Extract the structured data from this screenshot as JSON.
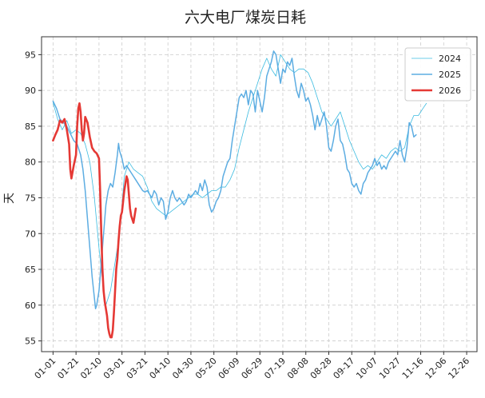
{
  "chart_data": {
    "type": "line",
    "title": "六大电厂煤炭日耗",
    "xlabel": "",
    "ylabel": "天",
    "ylim": [
      53.5,
      97.5
    ],
    "yticks": [
      55,
      60,
      65,
      70,
      75,
      80,
      85,
      90,
      95
    ],
    "grid": true,
    "legend_position": "top-right",
    "x_tick_days": [
      0,
      20,
      40,
      60,
      80,
      100,
      120,
      140,
      160,
      180,
      200,
      220,
      240,
      260,
      280,
      300,
      320,
      340,
      360
    ],
    "x_tick_labels": [
      "01-01",
      "01-21",
      "02-10",
      "03-01",
      "03-21",
      "04-10",
      "04-30",
      "05-20",
      "06-09",
      "06-29",
      "07-19",
      "08-08",
      "08-28",
      "09-17",
      "10-07",
      "10-27",
      "11-16",
      "12-06",
      "12-26"
    ],
    "series": [
      {
        "name": "2024",
        "color": "#3bbbe0",
        "points": [
          [
            0,
            88.3
          ],
          [
            4,
            86.0
          ],
          [
            8,
            84.5
          ],
          [
            12,
            85.8
          ],
          [
            16,
            84.0
          ],
          [
            20,
            84.5
          ],
          [
            24,
            84.0
          ],
          [
            28,
            82.5
          ],
          [
            32,
            80.0
          ],
          [
            36,
            75.0
          ],
          [
            40,
            68.0
          ],
          [
            44,
            62.0
          ],
          [
            46,
            60.0
          ],
          [
            50,
            62.0
          ],
          [
            54,
            66.0
          ],
          [
            58,
            70.0
          ],
          [
            62,
            78.0
          ],
          [
            66,
            80.0
          ],
          [
            70,
            79.0
          ],
          [
            74,
            78.5
          ],
          [
            78,
            78.0
          ],
          [
            82,
            76.5
          ],
          [
            86,
            74.5
          ],
          [
            90,
            73.5
          ],
          [
            94,
            73.0
          ],
          [
            98,
            72.5
          ],
          [
            102,
            73.0
          ],
          [
            106,
            73.5
          ],
          [
            110,
            74.0
          ],
          [
            114,
            74.5
          ],
          [
            118,
            75.0
          ],
          [
            122,
            75.5
          ],
          [
            126,
            75.5
          ],
          [
            130,
            75.0
          ],
          [
            134,
            75.5
          ],
          [
            138,
            76.0
          ],
          [
            142,
            76.0
          ],
          [
            146,
            76.5
          ],
          [
            150,
            76.5
          ],
          [
            154,
            77.5
          ],
          [
            158,
            79.0
          ],
          [
            162,
            82.0
          ],
          [
            166,
            84.5
          ],
          [
            170,
            87.0
          ],
          [
            174,
            89.0
          ],
          [
            178,
            91.0
          ],
          [
            182,
            93.0
          ],
          [
            186,
            94.5
          ],
          [
            190,
            93.0
          ],
          [
            194,
            92.0
          ],
          [
            198,
            95.0
          ],
          [
            202,
            94.0
          ],
          [
            206,
            93.0
          ],
          [
            210,
            92.5
          ],
          [
            214,
            93.0
          ],
          [
            218,
            93.0
          ],
          [
            222,
            92.5
          ],
          [
            226,
            91.0
          ],
          [
            230,
            89.0
          ],
          [
            234,
            87.0
          ],
          [
            238,
            86.0
          ],
          [
            242,
            85.0
          ],
          [
            246,
            86.0
          ],
          [
            250,
            87.0
          ],
          [
            254,
            85.0
          ],
          [
            258,
            83.0
          ],
          [
            262,
            81.5
          ],
          [
            266,
            80.0
          ],
          [
            270,
            79.0
          ],
          [
            274,
            79.5
          ],
          [
            278,
            79.0
          ],
          [
            282,
            80.0
          ],
          [
            286,
            81.0
          ],
          [
            290,
            80.5
          ],
          [
            294,
            81.5
          ],
          [
            298,
            82.0
          ],
          [
            302,
            81.5
          ],
          [
            306,
            82.0
          ],
          [
            310,
            85.0
          ],
          [
            314,
            86.5
          ],
          [
            318,
            86.5
          ],
          [
            322,
            87.5
          ],
          [
            325,
            88.2
          ]
        ]
      },
      {
        "name": "2025",
        "color": "#5dade2",
        "points": [
          [
            0,
            88.5
          ],
          [
            3,
            87.5
          ],
          [
            6,
            86.0
          ],
          [
            9,
            85.5
          ],
          [
            12,
            85.0
          ],
          [
            15,
            84.0
          ],
          [
            18,
            83.0
          ],
          [
            21,
            82.5
          ],
          [
            24,
            81.0
          ],
          [
            26,
            79.0
          ],
          [
            28,
            76.0
          ],
          [
            30,
            72.0
          ],
          [
            32,
            68.0
          ],
          [
            34,
            64.0
          ],
          [
            36,
            61.0
          ],
          [
            37,
            59.5
          ],
          [
            38,
            60.0
          ],
          [
            40,
            62.0
          ],
          [
            42,
            66.0
          ],
          [
            44,
            70.0
          ],
          [
            46,
            74.0
          ],
          [
            48,
            76.0
          ],
          [
            50,
            77.0
          ],
          [
            52,
            76.5
          ],
          [
            54,
            78.5
          ],
          [
            56,
            81.0
          ],
          [
            57,
            82.6
          ],
          [
            58,
            81.5
          ],
          [
            60,
            80.5
          ],
          [
            62,
            79.0
          ],
          [
            64,
            79.5
          ],
          [
            66,
            79.0
          ],
          [
            68,
            78.5
          ],
          [
            70,
            78.0
          ],
          [
            72,
            77.5
          ],
          [
            74,
            77.0
          ],
          [
            76,
            76.5
          ],
          [
            78,
            76.0
          ],
          [
            80,
            75.8
          ],
          [
            82,
            76.0
          ],
          [
            84,
            75.5
          ],
          [
            86,
            75.0
          ],
          [
            88,
            76.0
          ],
          [
            90,
            75.5
          ],
          [
            92,
            74.0
          ],
          [
            94,
            75.0
          ],
          [
            96,
            74.5
          ],
          [
            98,
            72.0
          ],
          [
            100,
            73.0
          ],
          [
            102,
            75.0
          ],
          [
            104,
            76.0
          ],
          [
            106,
            75.0
          ],
          [
            108,
            74.5
          ],
          [
            110,
            75.0
          ],
          [
            112,
            74.5
          ],
          [
            114,
            74.0
          ],
          [
            116,
            74.5
          ],
          [
            118,
            75.5
          ],
          [
            120,
            75.0
          ],
          [
            122,
            75.5
          ],
          [
            124,
            76.0
          ],
          [
            126,
            75.5
          ],
          [
            128,
            77.0
          ],
          [
            130,
            76.0
          ],
          [
            132,
            77.5
          ],
          [
            134,
            76.5
          ],
          [
            136,
            74.0
          ],
          [
            138,
            73.0
          ],
          [
            140,
            73.5
          ],
          [
            142,
            74.5
          ],
          [
            144,
            75.0
          ],
          [
            146,
            76.0
          ],
          [
            148,
            78.0
          ],
          [
            150,
            79.0
          ],
          [
            152,
            80.0
          ],
          [
            154,
            80.5
          ],
          [
            156,
            83.0
          ],
          [
            158,
            85.0
          ],
          [
            160,
            87.0
          ],
          [
            162,
            89.0
          ],
          [
            164,
            89.5
          ],
          [
            166,
            89.0
          ],
          [
            168,
            90.0
          ],
          [
            170,
            88.0
          ],
          [
            172,
            90.0
          ],
          [
            174,
            89.5
          ],
          [
            176,
            87.0
          ],
          [
            178,
            90.0
          ],
          [
            180,
            88.5
          ],
          [
            182,
            87.0
          ],
          [
            184,
            89.0
          ],
          [
            186,
            92.0
          ],
          [
            188,
            93.0
          ],
          [
            190,
            94.0
          ],
          [
            192,
            95.5
          ],
          [
            194,
            95.0
          ],
          [
            196,
            93.0
          ],
          [
            198,
            91.0
          ],
          [
            200,
            93.0
          ],
          [
            202,
            92.5
          ],
          [
            204,
            94.0
          ],
          [
            206,
            93.5
          ],
          [
            208,
            94.5
          ],
          [
            210,
            92.0
          ],
          [
            212,
            90.0
          ],
          [
            214,
            89.0
          ],
          [
            216,
            91.0
          ],
          [
            218,
            90.0
          ],
          [
            220,
            88.5
          ],
          [
            222,
            89.0
          ],
          [
            224,
            88.0
          ],
          [
            226,
            86.5
          ],
          [
            228,
            84.5
          ],
          [
            230,
            86.5
          ],
          [
            232,
            85.0
          ],
          [
            234,
            86.0
          ],
          [
            236,
            87.0
          ],
          [
            238,
            85.0
          ],
          [
            240,
            82.0
          ],
          [
            242,
            81.5
          ],
          [
            244,
            83.0
          ],
          [
            246,
            85.0
          ],
          [
            248,
            86.0
          ],
          [
            250,
            83.0
          ],
          [
            252,
            82.5
          ],
          [
            254,
            81.0
          ],
          [
            256,
            79.0
          ],
          [
            258,
            78.5
          ],
          [
            260,
            77.0
          ],
          [
            262,
            76.5
          ],
          [
            264,
            77.0
          ],
          [
            266,
            76.0
          ],
          [
            268,
            75.5
          ],
          [
            270,
            77.0
          ],
          [
            272,
            77.5
          ],
          [
            274,
            78.5
          ],
          [
            276,
            79.0
          ],
          [
            278,
            79.5
          ],
          [
            280,
            80.5
          ],
          [
            282,
            79.5
          ],
          [
            284,
            80.0
          ],
          [
            286,
            79.0
          ],
          [
            288,
            79.5
          ],
          [
            290,
            79.0
          ],
          [
            292,
            80.0
          ],
          [
            294,
            80.5
          ],
          [
            296,
            81.0
          ],
          [
            298,
            81.5
          ],
          [
            300,
            81.0
          ],
          [
            302,
            83.0
          ],
          [
            304,
            81.0
          ],
          [
            306,
            80.0
          ],
          [
            308,
            82.0
          ],
          [
            310,
            85.5
          ],
          [
            312,
            85.0
          ],
          [
            314,
            83.5
          ],
          [
            316,
            83.8
          ]
        ]
      },
      {
        "name": "2026",
        "color": "#e53935",
        "points": [
          [
            0,
            83.0
          ],
          [
            2,
            83.8
          ],
          [
            4,
            84.5
          ],
          [
            6,
            85.8
          ],
          [
            8,
            85.5
          ],
          [
            10,
            86.0
          ],
          [
            12,
            84.5
          ],
          [
            14,
            82.5
          ],
          [
            15,
            79.0
          ],
          [
            16,
            77.7
          ],
          [
            18,
            79.5
          ],
          [
            20,
            81.0
          ],
          [
            21,
            85.0
          ],
          [
            22,
            87.5
          ],
          [
            23,
            88.2
          ],
          [
            24,
            87.0
          ],
          [
            25,
            84.5
          ],
          [
            26,
            83.0
          ],
          [
            27,
            84.0
          ],
          [
            28,
            86.3
          ],
          [
            30,
            85.5
          ],
          [
            32,
            83.5
          ],
          [
            34,
            82.0
          ],
          [
            36,
            81.5
          ],
          [
            38,
            81.2
          ],
          [
            40,
            80.5
          ],
          [
            41,
            76.0
          ],
          [
            42,
            70.0
          ],
          [
            43,
            65.0
          ],
          [
            44,
            62.0
          ],
          [
            45,
            60.5
          ],
          [
            46,
            59.5
          ],
          [
            47,
            58.5
          ],
          [
            48,
            56.8
          ],
          [
            49,
            56.0
          ],
          [
            50,
            55.5
          ],
          [
            51,
            55.5
          ],
          [
            52,
            56.5
          ],
          [
            53,
            59.0
          ],
          [
            54,
            62.0
          ],
          [
            55,
            65.0
          ],
          [
            56,
            66.5
          ],
          [
            57,
            69.0
          ],
          [
            58,
            71.0
          ],
          [
            59,
            72.5
          ],
          [
            60,
            73.0
          ],
          [
            61,
            74.5
          ],
          [
            62,
            76.0
          ],
          [
            63,
            77.0
          ],
          [
            64,
            78.0
          ],
          [
            65,
            77.5
          ],
          [
            66,
            75.5
          ],
          [
            67,
            73.5
          ],
          [
            68,
            72.5
          ],
          [
            69,
            72.0
          ],
          [
            70,
            71.5
          ],
          [
            71,
            72.5
          ],
          [
            72,
            73.5
          ]
        ]
      }
    ]
  }
}
